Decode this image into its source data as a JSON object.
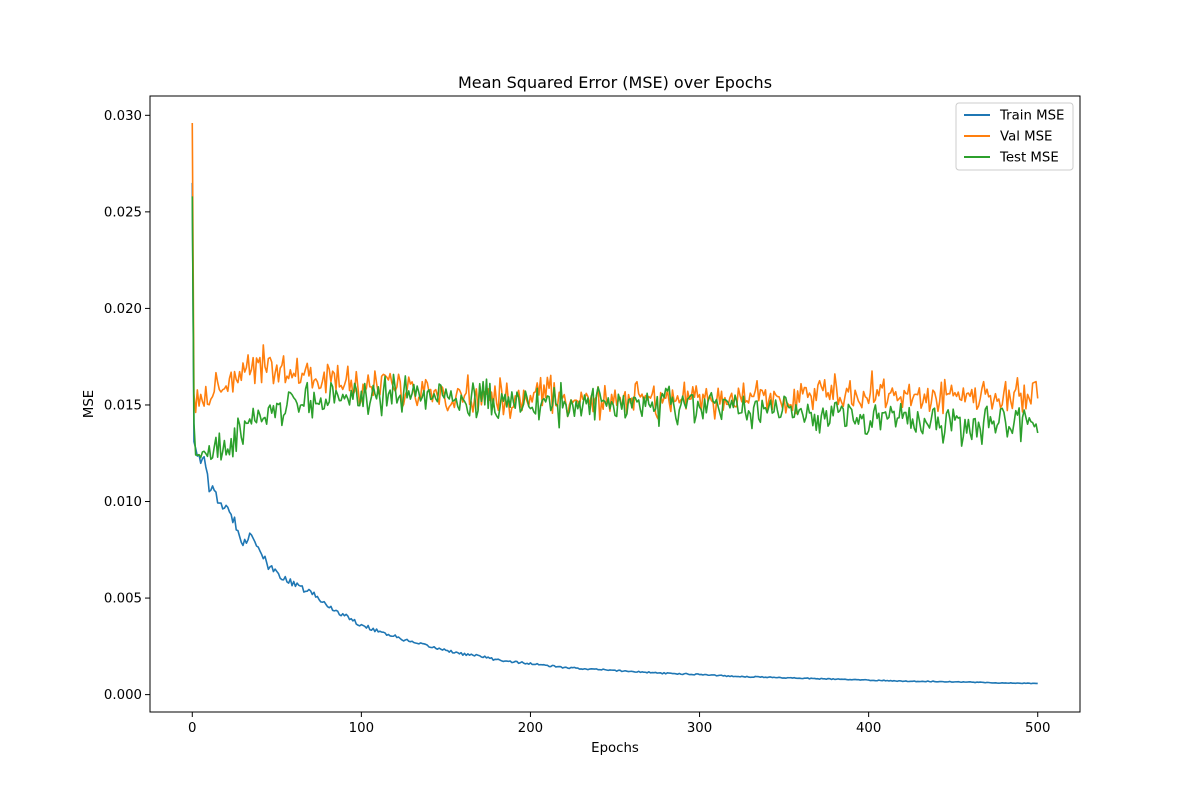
{
  "chart_data": {
    "type": "line",
    "title": "Mean Squared Error (MSE) over Epochs",
    "xlabel": "Epochs",
    "ylabel": "MSE",
    "xlim": [
      -25,
      525
    ],
    "ylim": [
      -0.0009,
      0.031
    ],
    "xticks": [
      0,
      100,
      200,
      300,
      400,
      500
    ],
    "xtick_labels": [
      "0",
      "100",
      "200",
      "300",
      "400",
      "500"
    ],
    "yticks": [
      0.0,
      0.005,
      0.01,
      0.015,
      0.02,
      0.025,
      0.03
    ],
    "ytick_labels": [
      "0.000",
      "0.005",
      "0.010",
      "0.015",
      "0.020",
      "0.025",
      "0.030"
    ],
    "grid": false,
    "legend_position": "top-right",
    "x": {
      "start": 0,
      "end": 500,
      "step": 1
    },
    "series": [
      {
        "name": "Train MSE",
        "color": "#1f77b4",
        "x": [
          0,
          1,
          2,
          5,
          8,
          10,
          15,
          20,
          25,
          30,
          35,
          40,
          45,
          50,
          60,
          70,
          80,
          90,
          100,
          110,
          120,
          130,
          140,
          150,
          160,
          170,
          180,
          190,
          200,
          220,
          240,
          260,
          280,
          300,
          320,
          340,
          360,
          380,
          400,
          420,
          440,
          460,
          480,
          500
        ],
        "values": [
          0.0265,
          0.0131,
          0.0128,
          0.0123,
          0.0118,
          0.0108,
          0.0101,
          0.0096,
          0.009,
          0.0079,
          0.0083,
          0.0075,
          0.0066,
          0.0063,
          0.0057,
          0.0053,
          0.0046,
          0.0041,
          0.0036,
          0.0033,
          0.003,
          0.0027,
          0.0025,
          0.0023,
          0.0021,
          0.002,
          0.0018,
          0.0017,
          0.0016,
          0.0014,
          0.0013,
          0.0012,
          0.0011,
          0.00105,
          0.00095,
          0.0009,
          0.00085,
          0.0008,
          0.00075,
          0.0007,
          0.00068,
          0.00065,
          0.0006,
          0.00058
        ]
      },
      {
        "name": "Val MSE",
        "color": "#ff7f0e",
        "x": [
          0,
          1,
          3,
          6,
          10,
          15,
          20,
          25,
          30,
          35,
          40,
          45,
          50,
          60,
          70,
          80,
          90,
          100,
          110,
          120,
          130,
          140,
          150,
          160,
          170,
          180,
          190,
          200,
          220,
          240,
          260,
          280,
          300,
          320,
          340,
          360,
          380,
          400,
          420,
          440,
          460,
          480,
          500
        ],
        "values": [
          0.0296,
          0.0155,
          0.0152,
          0.0153,
          0.0155,
          0.0158,
          0.0162,
          0.0165,
          0.0168,
          0.017,
          0.0172,
          0.0173,
          0.0168,
          0.0166,
          0.0165,
          0.0163,
          0.0162,
          0.016,
          0.0159,
          0.0158,
          0.0157,
          0.0157,
          0.0156,
          0.0155,
          0.0155,
          0.0154,
          0.0154,
          0.0154,
          0.0154,
          0.0153,
          0.0153,
          0.0153,
          0.0153,
          0.0153,
          0.0154,
          0.0155,
          0.0156,
          0.0156,
          0.0155,
          0.0155,
          0.0155,
          0.0154,
          0.0154
        ],
        "noise": 0.0009
      },
      {
        "name": "Test MSE",
        "color": "#2ca02c",
        "x": [
          0,
          1,
          3,
          6,
          10,
          15,
          20,
          25,
          30,
          35,
          40,
          45,
          50,
          60,
          70,
          80,
          90,
          100,
          110,
          120,
          130,
          140,
          150,
          160,
          170,
          180,
          190,
          200,
          220,
          240,
          260,
          280,
          300,
          320,
          340,
          360,
          380,
          400,
          420,
          440,
          460,
          480,
          500
        ],
        "values": [
          0.0258,
          0.0135,
          0.0128,
          0.0125,
          0.0123,
          0.0125,
          0.0128,
          0.0132,
          0.0136,
          0.014,
          0.0143,
          0.0146,
          0.0148,
          0.015,
          0.0152,
          0.0154,
          0.0155,
          0.0155,
          0.0155,
          0.0155,
          0.0155,
          0.0155,
          0.0154,
          0.0154,
          0.0153,
          0.0152,
          0.0151,
          0.015,
          0.015,
          0.0151,
          0.015,
          0.0149,
          0.0149,
          0.0149,
          0.0147,
          0.0146,
          0.0145,
          0.0144,
          0.0143,
          0.0141,
          0.014,
          0.0142,
          0.0143
        ],
        "noise": 0.0009
      }
    ]
  }
}
